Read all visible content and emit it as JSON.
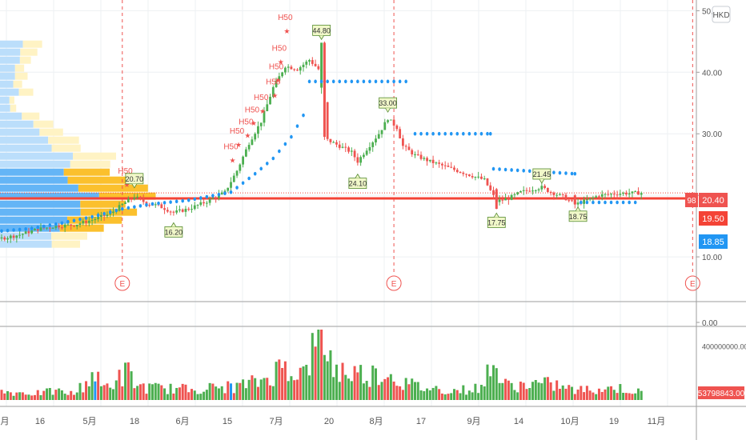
{
  "currency_badge": "HKD",
  "colors": {
    "up": "#4caf50",
    "down": "#ef5350",
    "dot": "#2196f3",
    "support": "#f44336",
    "grid": "#eef0f3",
    "profile_blue": "#64b5f6",
    "profile_blue_light": "#bbdefb",
    "profile_yellow": "#fbc02d",
    "profile_yellow_light": "#fff3c4"
  },
  "price_axis": {
    "ticks": [
      {
        "value": 50,
        "label": "50.00"
      },
      {
        "value": 40,
        "label": "40.00"
      },
      {
        "value": 30,
        "label": "30.00"
      },
      {
        "value": 20,
        "label": "20.00"
      },
      {
        "value": 10,
        "label": "10.00"
      },
      {
        "value": 0,
        "label": "0.00"
      }
    ],
    "range": [
      0,
      52
    ]
  },
  "price_tags": [
    {
      "value": 20.4,
      "label": "20.40",
      "color": "#ef5350",
      "prefix": "98"
    },
    {
      "value": 19.5,
      "label": "19.50",
      "color": "#f44336"
    },
    {
      "value": 18.85,
      "label": "18.85",
      "color": "#2196f3"
    }
  ],
  "volume_axis": {
    "tick_label": "400000000.00",
    "tick_value": 400000000,
    "max": 520000000,
    "last_label": "53798843.00"
  },
  "x_axis": {
    "labels": [
      "月",
      "16",
      "5月",
      "18",
      "6月",
      "15",
      "7月",
      "20",
      "8月",
      "17",
      "9月",
      "14",
      "10月",
      "19",
      "11月"
    ]
  },
  "earnings_markers": [
    "E",
    "E",
    "E"
  ],
  "annotations": [
    {
      "label": "44.80",
      "day": 106,
      "value": 44.8,
      "pos": "above"
    },
    {
      "label": "33.00",
      "day": 128,
      "value": 33.0,
      "pos": "above"
    },
    {
      "label": "24.10",
      "day": 118,
      "value": 24.1,
      "pos": "below"
    },
    {
      "label": "20.70",
      "day": 44,
      "value": 20.7,
      "pos": "above"
    },
    {
      "label": "16.20",
      "day": 57,
      "value": 16.2,
      "pos": "below"
    },
    {
      "label": "17.75",
      "day": 164,
      "value": 17.75,
      "pos": "below"
    },
    {
      "label": "21.45",
      "day": 179,
      "value": 21.45,
      "pos": "above"
    },
    {
      "label": "18.75",
      "day": 191,
      "value": 18.75,
      "pos": "below"
    }
  ],
  "h50_labels": [
    {
      "label": "H50",
      "day": 94,
      "value": 48.5
    },
    {
      "label": "H50",
      "day": 92,
      "value": 43.5
    },
    {
      "label": "H50",
      "day": 91,
      "value": 40.5
    },
    {
      "label": "H50",
      "day": 90,
      "value": 38.0
    },
    {
      "label": "H50",
      "day": 86,
      "value": 35.5
    },
    {
      "label": "H50",
      "day": 83,
      "value": 33.5
    },
    {
      "label": "H50",
      "day": 81,
      "value": 31.5
    },
    {
      "label": "H50",
      "day": 78,
      "value": 30.0
    },
    {
      "label": "H50",
      "day": 76,
      "value": 27.5
    },
    {
      "label": "H50",
      "day": 41,
      "value": 23.5
    }
  ],
  "chart_data": {
    "type": "candlestick",
    "currency": "HKD",
    "price_range": [
      0,
      52
    ],
    "support_level": 19.5,
    "last_price": 20.4,
    "dot_line_value": 18.85,
    "earnings_days": [
      40,
      130,
      229
    ],
    "close_series": [
      [
        0,
        13.0
      ],
      [
        6,
        13.6
      ],
      [
        12,
        14.5
      ],
      [
        18,
        15.0
      ],
      [
        24,
        15.2
      ],
      [
        30,
        16.0
      ],
      [
        36,
        17.0
      ],
      [
        40,
        18.5
      ],
      [
        44,
        19.8
      ],
      [
        48,
        18.7
      ],
      [
        52,
        18.3
      ],
      [
        57,
        17.2
      ],
      [
        62,
        17.8
      ],
      [
        68,
        19.0
      ],
      [
        74,
        20.5
      ],
      [
        78,
        24.0
      ],
      [
        82,
        28.5
      ],
      [
        86,
        32.0
      ],
      [
        90,
        37.5
      ],
      [
        94,
        41.0
      ],
      [
        98,
        40.5
      ],
      [
        102,
        42.0
      ],
      [
        106,
        40.0
      ],
      [
        107,
        35.0
      ],
      [
        108,
        29.0
      ],
      [
        112,
        28.0
      ],
      [
        116,
        27.0
      ],
      [
        118,
        25.5
      ],
      [
        121,
        27.5
      ],
      [
        125,
        30.0
      ],
      [
        128,
        32.5
      ],
      [
        131,
        31.0
      ],
      [
        133,
        28.0
      ],
      [
        137,
        26.5
      ],
      [
        142,
        25.5
      ],
      [
        148,
        24.5
      ],
      [
        154,
        23.5
      ],
      [
        160,
        22.5
      ],
      [
        164,
        19.0
      ],
      [
        168,
        19.5
      ],
      [
        172,
        20.5
      ],
      [
        176,
        21.0
      ],
      [
        179,
        21.3
      ],
      [
        182,
        20.5
      ],
      [
        186,
        19.8
      ],
      [
        190,
        18.5
      ],
      [
        194,
        19.2
      ],
      [
        198,
        20.0
      ],
      [
        204,
        20.3
      ],
      [
        212,
        20.4
      ]
    ],
    "dot_segments": [
      [
        [
          0,
          14.2
        ],
        [
          10,
          14.6
        ],
        [
          20,
          15.5
        ],
        [
          30,
          16.5
        ],
        [
          40,
          17.8
        ],
        [
          50,
          18.6
        ],
        [
          62,
          19.2
        ],
        [
          76,
          20.5
        ],
        [
          84,
          23.5
        ],
        [
          90,
          26.0
        ],
        [
          96,
          29.5
        ],
        [
          100,
          33.0
        ]
      ],
      [
        [
          102,
          38.5
        ],
        [
          134,
          38.5
        ]
      ],
      [
        [
          137,
          30.0
        ],
        [
          162,
          30.0
        ]
      ],
      [
        [
          163,
          24.3
        ],
        [
          190,
          23.5
        ]
      ],
      [
        [
          192,
          18.85
        ],
        [
          210,
          18.85
        ]
      ]
    ],
    "volume": {
      "days": [
        0,
        6,
        12,
        18,
        24,
        31,
        33,
        37,
        42,
        44,
        48,
        54,
        62,
        70,
        78,
        86,
        94,
        100,
        106,
        110,
        116,
        122,
        128,
        134,
        140,
        150,
        160,
        162,
        166,
        172,
        178,
        184,
        190,
        196,
        204,
        212
      ],
      "values": [
        60,
        55,
        50,
        65,
        45,
        200,
        90,
        130,
        210,
        120,
        90,
        85,
        80,
        90,
        100,
        140,
        260,
        190,
        520,
        230,
        200,
        190,
        200,
        120,
        90,
        70,
        90,
        340,
        110,
        110,
        120,
        110,
        70,
        80,
        90,
        53.798843
      ],
      "unit_scale": 1000000
    },
    "x_labels": [
      "月",
      "16",
      "5月",
      "18",
      "6月",
      "15",
      "7月",
      "20",
      "8月",
      "17",
      "9月",
      "14",
      "10月",
      "19",
      "11月"
    ]
  }
}
